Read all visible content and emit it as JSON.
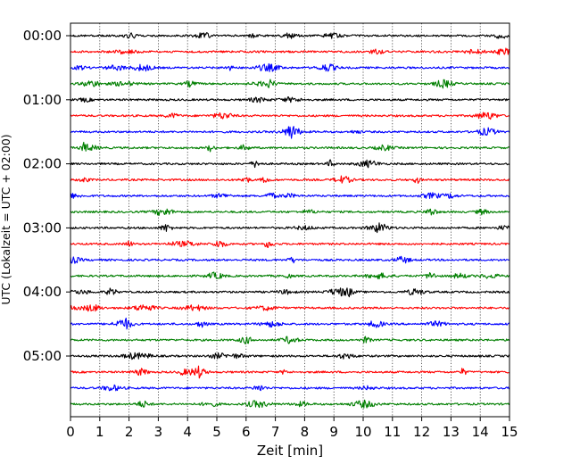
{
  "chart_data": {
    "type": "line",
    "title": "",
    "xlabel": "Zeit  [min]",
    "ylabel": "UTC (Lokalzeit = UTC + 02:00)",
    "xlim": [
      0,
      15
    ],
    "x_ticks": [
      "0",
      "1",
      "2",
      "3",
      "4",
      "5",
      "6",
      "7",
      "8",
      "9",
      "10",
      "11",
      "12",
      "13",
      "14",
      "15"
    ],
    "y_ticks": [
      "00:00",
      "01:00",
      "02:00",
      "03:00",
      "04:00",
      "05:00"
    ],
    "grid": "vertical dotted",
    "trace_interval_min": 15,
    "trace_count": 24,
    "trace_colors": [
      "#000000",
      "#ff0000",
      "#0000ff",
      "#007f00"
    ],
    "series": [
      {
        "start": "00:00"
      },
      {
        "start": "00:15"
      },
      {
        "start": "00:30"
      },
      {
        "start": "00:45"
      },
      {
        "start": "01:00"
      },
      {
        "start": "01:15"
      },
      {
        "start": "01:30"
      },
      {
        "start": "01:45"
      },
      {
        "start": "02:00"
      },
      {
        "start": "02:15"
      },
      {
        "start": "02:30"
      },
      {
        "start": "02:45"
      },
      {
        "start": "03:00"
      },
      {
        "start": "03:15"
      },
      {
        "start": "03:30"
      },
      {
        "start": "03:45"
      },
      {
        "start": "04:00"
      },
      {
        "start": "04:15"
      },
      {
        "start": "04:30"
      },
      {
        "start": "04:45"
      },
      {
        "start": "05:00"
      },
      {
        "start": "05:15"
      },
      {
        "start": "05:30"
      },
      {
        "start": "05:45"
      }
    ]
  }
}
